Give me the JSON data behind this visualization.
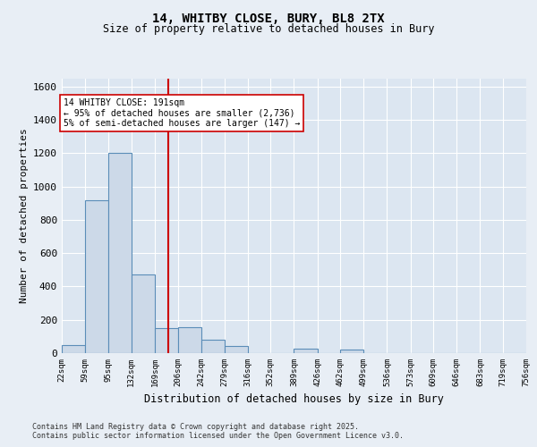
{
  "title1": "14, WHITBY CLOSE, BURY, BL8 2TX",
  "title2": "Size of property relative to detached houses in Bury",
  "xlabel": "Distribution of detached houses by size in Bury",
  "ylabel": "Number of detached properties",
  "bin_edges": [
    22,
    59,
    95,
    132,
    169,
    206,
    242,
    279,
    316,
    352,
    389,
    426,
    462,
    499,
    536,
    573,
    609,
    646,
    683,
    719,
    756
  ],
  "bin_counts": [
    50,
    920,
    1200,
    470,
    150,
    155,
    80,
    45,
    0,
    0,
    25,
    0,
    20,
    0,
    0,
    0,
    0,
    0,
    0,
    0
  ],
  "property_size": 191,
  "annotation_text": "14 WHITBY CLOSE: 191sqm\n← 95% of detached houses are smaller (2,736)\n5% of semi-detached houses are larger (147) →",
  "bar_facecolor": "#ccd9e8",
  "bar_edgecolor": "#5b8db8",
  "vline_color": "#cc0000",
  "annotation_box_edgecolor": "#cc0000",
  "annotation_box_facecolor": "#ffffff",
  "fig_facecolor": "#e8eef5",
  "plot_background": "#dce6f1",
  "grid_color": "#ffffff",
  "ylim": [
    0,
    1650
  ],
  "yticks": [
    0,
    200,
    400,
    600,
    800,
    1000,
    1200,
    1400,
    1600
  ],
  "footer_line1": "Contains HM Land Registry data © Crown copyright and database right 2025.",
  "footer_line2": "Contains public sector information licensed under the Open Government Licence v3.0."
}
